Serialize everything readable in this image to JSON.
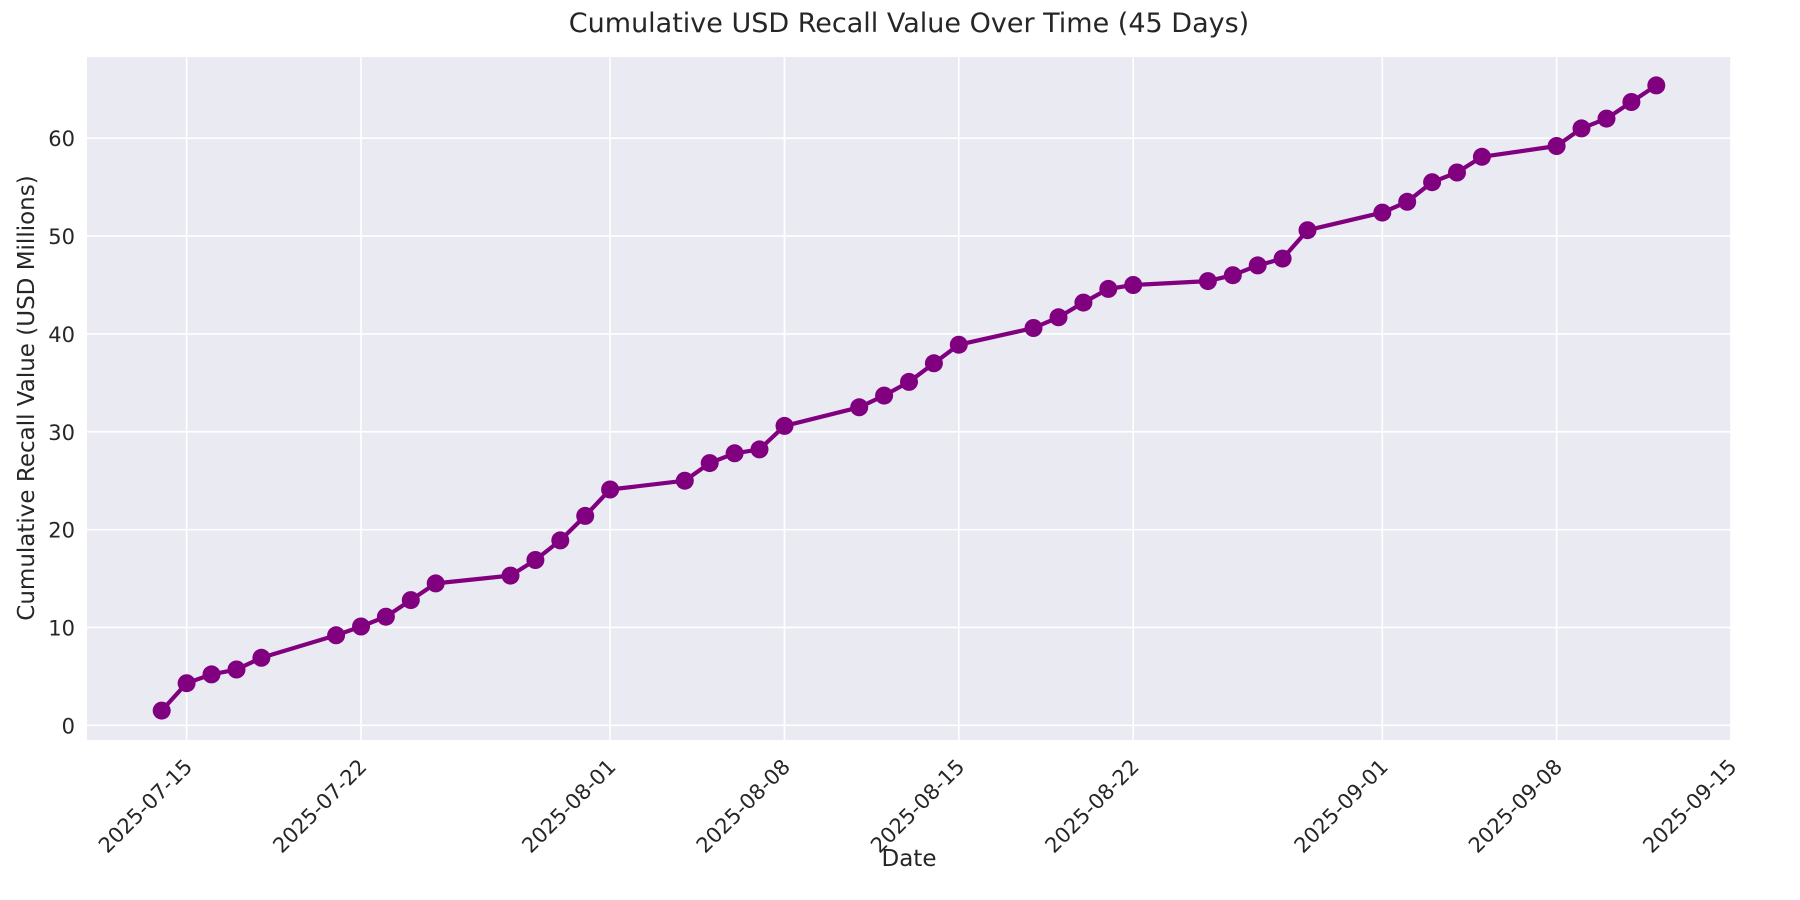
{
  "chart_data": {
    "type": "line",
    "title": "Cumulative USD Recall Value Over Time (45 Days)",
    "xlabel": "Date",
    "ylabel": "Cumulative Recall Value (USD Millions)",
    "x": [
      "2025-07-14",
      "2025-07-15",
      "2025-07-16",
      "2025-07-17",
      "2025-07-18",
      "2025-07-21",
      "2025-07-22",
      "2025-07-23",
      "2025-07-24",
      "2025-07-25",
      "2025-07-28",
      "2025-07-29",
      "2025-07-30",
      "2025-07-31",
      "2025-08-01",
      "2025-08-04",
      "2025-08-05",
      "2025-08-06",
      "2025-08-07",
      "2025-08-08",
      "2025-08-11",
      "2025-08-12",
      "2025-08-13",
      "2025-08-14",
      "2025-08-15",
      "2025-08-18",
      "2025-08-19",
      "2025-08-20",
      "2025-08-21",
      "2025-08-22",
      "2025-08-25",
      "2025-08-26",
      "2025-08-27",
      "2025-08-28",
      "2025-08-29",
      "2025-09-01",
      "2025-09-02",
      "2025-09-03",
      "2025-09-04",
      "2025-09-05",
      "2025-09-08",
      "2025-09-09",
      "2025-09-10",
      "2025-09-11",
      "2025-09-12"
    ],
    "values": [
      1.5,
      4.3,
      5.2,
      5.7,
      6.9,
      9.2,
      10.1,
      11.1,
      12.8,
      14.5,
      15.3,
      16.9,
      18.9,
      21.4,
      24.1,
      25.0,
      26.8,
      27.8,
      28.2,
      30.6,
      32.5,
      33.7,
      35.1,
      37.0,
      38.9,
      40.6,
      41.7,
      43.2,
      44.6,
      45.0,
      45.4,
      46.0,
      47.0,
      47.7,
      50.6,
      52.4,
      53.5,
      55.5,
      56.5,
      58.1,
      59.2,
      61.0,
      62.0,
      63.7,
      65.4
    ],
    "xticks": [
      "2025-07-15",
      "2025-07-22",
      "2025-08-01",
      "2025-08-08",
      "2025-08-15",
      "2025-08-22",
      "2025-09-01",
      "2025-09-08",
      "2025-09-15"
    ],
    "yticks": [
      0,
      10,
      20,
      30,
      40,
      50,
      60
    ],
    "xlim": [
      "2025-07-11",
      "2025-09-15"
    ],
    "ylim": [
      -1.5,
      68.3
    ],
    "grid": true,
    "legend_position": "none",
    "line_color": "#800080",
    "marker": "circle",
    "plot_bg_color": "#EAEAF2",
    "grid_color": "#FFFFFF",
    "text_color": "#262626"
  }
}
